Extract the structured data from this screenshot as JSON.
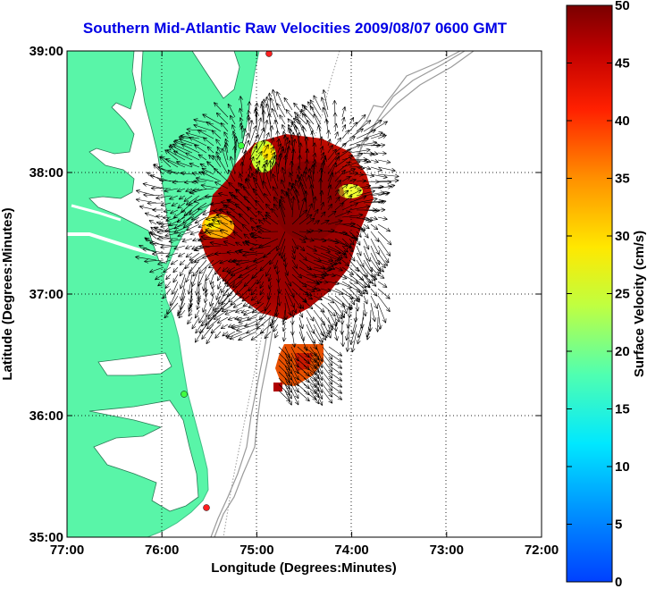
{
  "title": "Southern Mid-Atlantic Raw Velocities 2009/08/07 0600 GMT",
  "map": {
    "xlabel": "Longitude (Degrees:Minutes)",
    "ylabel": "Latitude (Degrees:Minutes)",
    "x_ticks": [
      "77:00",
      "76:00",
      "75:00",
      "74:00",
      "73:00",
      "72:00"
    ],
    "y_ticks": [
      "39:00",
      "38:00",
      "37:00",
      "36:00",
      "35:00"
    ],
    "lon_range": [
      -77,
      -72
    ],
    "lat_range": [
      35,
      39
    ],
    "grid": true,
    "colors": {
      "land": "#59f5a8",
      "ocean": "#ffffff",
      "bathymetry": "#999999",
      "arrows": "#000000",
      "station": "#ff2020",
      "station_alt": "#40ff40"
    }
  },
  "colorbar": {
    "label": "Surface Velocity (cm/s)",
    "ticks": [
      "0",
      "5",
      "10",
      "15",
      "20",
      "25",
      "30",
      "35",
      "40",
      "45",
      "50"
    ],
    "range": [
      0,
      50
    ],
    "colormap": "jet"
  }
}
